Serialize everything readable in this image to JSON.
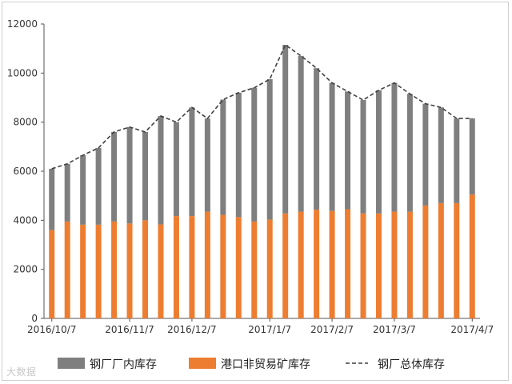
{
  "chart_data": {
    "type": "bar",
    "stacked": true,
    "ylim": [
      0,
      12000
    ],
    "yticks": [
      0,
      2000,
      4000,
      6000,
      8000,
      10000,
      12000
    ],
    "xtick_labels": [
      {
        "index": 0,
        "label": "2016/10/7"
      },
      {
        "index": 5,
        "label": "2016/11/7"
      },
      {
        "index": 9,
        "label": "2016/12/7"
      },
      {
        "index": 14,
        "label": "2017/1/7"
      },
      {
        "index": 18,
        "label": "2017/2/7"
      },
      {
        "index": 22,
        "label": "2017/3/7"
      },
      {
        "index": 27,
        "label": "2017/4/7"
      }
    ],
    "categories": [
      "",
      "",
      "",
      "",
      "",
      "",
      "",
      "",
      "",
      "",
      "",
      "",
      "",
      "",
      "",
      "",
      "",
      "",
      "",
      "",
      "",
      "",
      "",
      "",
      "",
      "",
      "",
      ""
    ],
    "series": [
      {
        "name": "港口非贸易矿库存",
        "color": "#ed7d31",
        "values": [
          3600,
          3950,
          3820,
          3820,
          3950,
          3870,
          4000,
          3830,
          4170,
          4170,
          4350,
          4220,
          4130,
          3950,
          4030,
          4280,
          4350,
          4430,
          4380,
          4450,
          4280,
          4280,
          4350,
          4350,
          4600,
          4700,
          4700,
          5050
        ]
      },
      {
        "name": "钢厂厂内库存",
        "color": "#7f7f7f",
        "values": [
          2500,
          2350,
          2830,
          3130,
          3650,
          3930,
          3600,
          4420,
          3830,
          4430,
          3800,
          4700,
          5070,
          5450,
          5720,
          6870,
          6350,
          5770,
          5220,
          4800,
          4620,
          5020,
          5250,
          4800,
          4150,
          3900,
          3450,
          3100
        ]
      },
      {
        "name": "钢厂总体库存",
        "type": "line",
        "style": "dashed",
        "color": "#404040",
        "values": [
          6100,
          6300,
          6650,
          6950,
          7600,
          7800,
          7600,
          8250,
          8000,
          8600,
          8150,
          8920,
          9200,
          9400,
          9750,
          11150,
          10700,
          10200,
          9600,
          9250,
          8900,
          9300,
          9600,
          9150,
          8750,
          8600,
          8150,
          8150
        ]
      }
    ],
    "legend_position": "bottom"
  },
  "watermark": "大数据"
}
